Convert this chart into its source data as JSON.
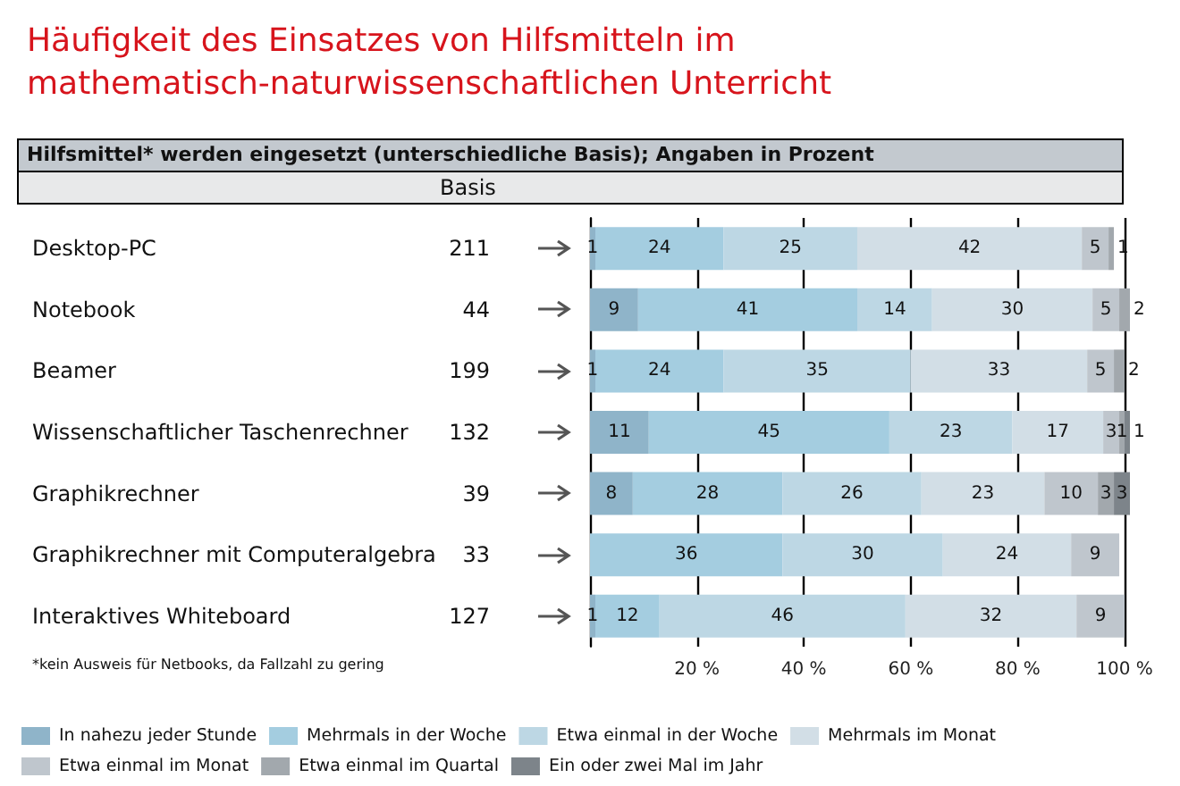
{
  "chart_data": {
    "type": "bar",
    "orientation": "horizontal",
    "stacked": true,
    "data_labels": true,
    "grid": "x",
    "legend": "bottom",
    "title": "Häufigkeit des Einsatzes von Hilfsmitteln im mathematisch-naturwissenschaftlichen Unterricht",
    "subtitle": "Hilfsmittel* werden eingesetzt (unterschiedliche Basis); Angaben in Prozent",
    "annotations": [
      "*kein Ausweis für Netbooks, da Fallzahl zu gering"
    ],
    "categories": [
      "Desktop-PC",
      "Notebook",
      "Beamer",
      "Wissenschaftlicher Taschenrechner",
      "Graphikrechner",
      "Graphikrechner mit Computeralgebra",
      "Interaktives Whiteboard"
    ],
    "y2label": "Basis",
    "y2_categories": [
      "211",
      "44",
      "199",
      "132",
      "39",
      "33",
      "127"
    ],
    "xlim": [
      0,
      101
    ],
    "xticks": [
      {
        "value": 0,
        "label": null
      },
      {
        "value": 20,
        "label": "20 %"
      },
      {
        "value": 40,
        "label": "40 %"
      },
      {
        "value": 60,
        "label": "60 %"
      },
      {
        "value": 80,
        "label": "80 %"
      },
      {
        "value": 100,
        "label": "100 %"
      }
    ],
    "series": [
      {
        "name": "In nahezu jeder Stunde",
        "color": "#8fb4c9",
        "values": [
          1,
          9,
          1,
          11,
          8,
          null,
          1
        ]
      },
      {
        "name": "Mehrmals in der Woche",
        "color": "#a4cde0",
        "values": [
          24,
          41,
          24,
          45,
          28,
          36,
          12
        ]
      },
      {
        "name": "Etwa einmal in der Woche",
        "color": "#bdd7e4",
        "values": [
          25,
          14,
          35,
          23,
          26,
          30,
          46
        ]
      },
      {
        "name": "Mehrmals im Monat",
        "color": "#d2dee6",
        "values": [
          42,
          30,
          33,
          17,
          23,
          24,
          32
        ]
      },
      {
        "name": "Etwa einmal im Monat",
        "color": "#bfc6cd",
        "values": [
          5,
          5,
          5,
          3,
          10,
          9,
          9
        ]
      },
      {
        "name": "Etwa einmal im Quartal",
        "color": "#a2a8ad",
        "values": [
          1,
          2,
          2,
          1,
          3,
          null,
          null
        ]
      },
      {
        "name": "Ein oder zwei Mal im Jahr",
        "color": "#7d848a",
        "values": [
          null,
          null,
          null,
          1,
          3,
          null,
          null
        ]
      }
    ]
  }
}
